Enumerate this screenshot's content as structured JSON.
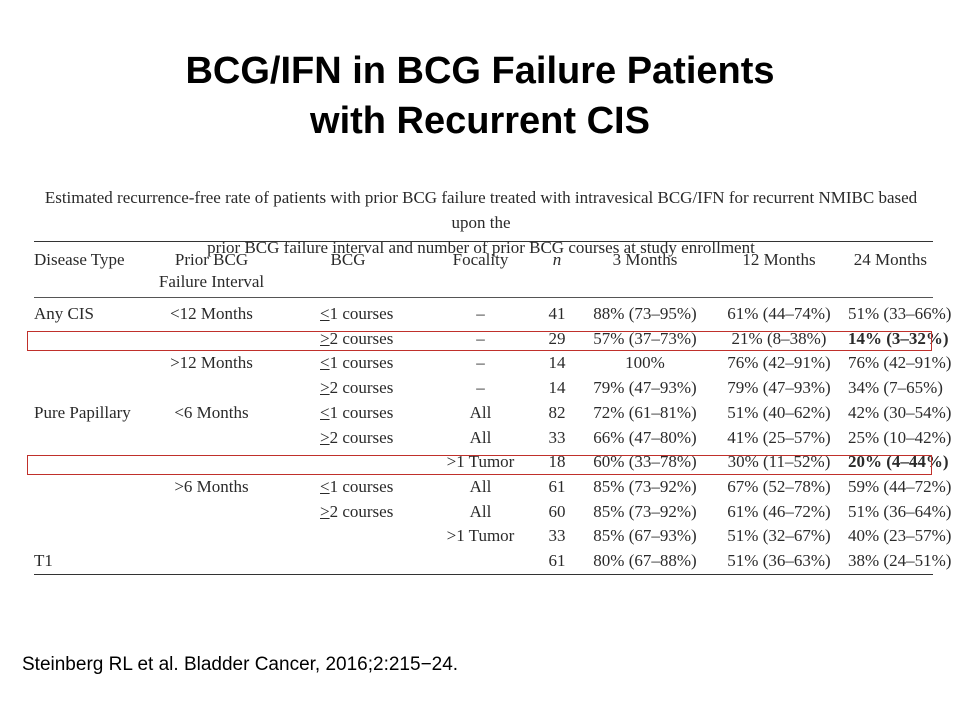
{
  "slide": {
    "title_line1": "BCG/IFN in BCG Failure Patients",
    "title_line2": "with Recurrent CIS",
    "citation": "Steinberg RL et al. Bladder Cancer, 2016;2:215−24."
  },
  "table": {
    "caption_line1": "Estimated recurrence-free rate of patients with prior BCG failure treated with intravesical BCG/IFN for recurrent NMIBC based upon the",
    "caption_line2": "prior BCG failure interval and number of prior BCG courses at study enrollment",
    "headers": {
      "disease_type": "Disease Type",
      "interval_line1": "Prior BCG",
      "interval_line2": "Failure Interval",
      "bcg": "BCG",
      "focality": "Focality",
      "n": "n",
      "m3": "3 Months",
      "m12": "12 Months",
      "m24": "24 Months"
    },
    "rows": [
      {
        "disease_type": "Any CIS",
        "interval": "<12 Months",
        "bcg_sym": "<",
        "bcg_rest": "1 courses",
        "focality": "–",
        "n": "41",
        "m3": "88% (73–95%)",
        "m12": "61% (44–74%)",
        "m24": "51% (33–66%)"
      },
      {
        "disease_type": "",
        "interval": "",
        "bcg_sym": ">",
        "bcg_rest": "2 courses",
        "focality": "–",
        "n": "29",
        "m3": "57% (37–73%)",
        "m12": "21% (8–38%)",
        "m24": "14% (3–32%)"
      },
      {
        "disease_type": "",
        "interval": ">12 Months",
        "bcg_sym": "<",
        "bcg_rest": "1 courses",
        "focality": "–",
        "n": "14",
        "m3": "100%",
        "m12": "76% (42–91%)",
        "m24": "76% (42–91%)"
      },
      {
        "disease_type": "",
        "interval": "",
        "bcg_sym": ">",
        "bcg_rest": "2 courses",
        "focality": "–",
        "n": "14",
        "m3": "79% (47–93%)",
        "m12": "79% (47–93%)",
        "m24": "34% (7–65%)"
      },
      {
        "disease_type": "Pure Papillary",
        "interval": "<6 Months",
        "bcg_sym": "<",
        "bcg_rest": "1 courses",
        "focality": "All",
        "n": "82",
        "m3": "72% (61–81%)",
        "m12": "51% (40–62%)",
        "m24": "42% (30–54%)"
      },
      {
        "disease_type": "",
        "interval": "",
        "bcg_sym": ">",
        "bcg_rest": "2 courses",
        "focality": "All",
        "n": "33",
        "m3": "66% (47–80%)",
        "m12": "41% (25–57%)",
        "m24": "25% (10–42%)"
      },
      {
        "disease_type": "",
        "interval": "",
        "bcg_sym": "",
        "bcg_rest": "",
        "focality": ">1 Tumor",
        "n": "18",
        "m3": "60% (33–78%)",
        "m12": "30% (11–52%)",
        "m24": "20% (4–44%)"
      },
      {
        "disease_type": "",
        "interval": ">6 Months",
        "bcg_sym": "<",
        "bcg_rest": "1 courses",
        "focality": "All",
        "n": "61",
        "m3": "85% (73–92%)",
        "m12": "67% (52–78%)",
        "m24": "59% (44–72%)"
      },
      {
        "disease_type": "",
        "interval": "",
        "bcg_sym": ">",
        "bcg_rest": "2 courses",
        "focality": "All",
        "n": "60",
        "m3": "85% (73–92%)",
        "m12": "61% (46–72%)",
        "m24": "51% (36–64%)"
      },
      {
        "disease_type": "",
        "interval": "",
        "bcg_sym": "",
        "bcg_rest": "",
        "focality": ">1 Tumor",
        "n": "33",
        "m3": "85% (67–93%)",
        "m12": "51% (32–67%)",
        "m24": "40% (23–57%)"
      },
      {
        "disease_type": "T1",
        "interval": "",
        "bcg_sym": "",
        "bcg_rest": "",
        "focality": "",
        "n": "61",
        "m3": "80% (67–88%)",
        "m12": "51% (36–63%)",
        "m24": "38% (24–51%)"
      }
    ],
    "bold_24_month_rows": [
      1,
      6
    ],
    "highlighted_rows": [
      1,
      6
    ],
    "highlight_color": "#c0302b"
  }
}
